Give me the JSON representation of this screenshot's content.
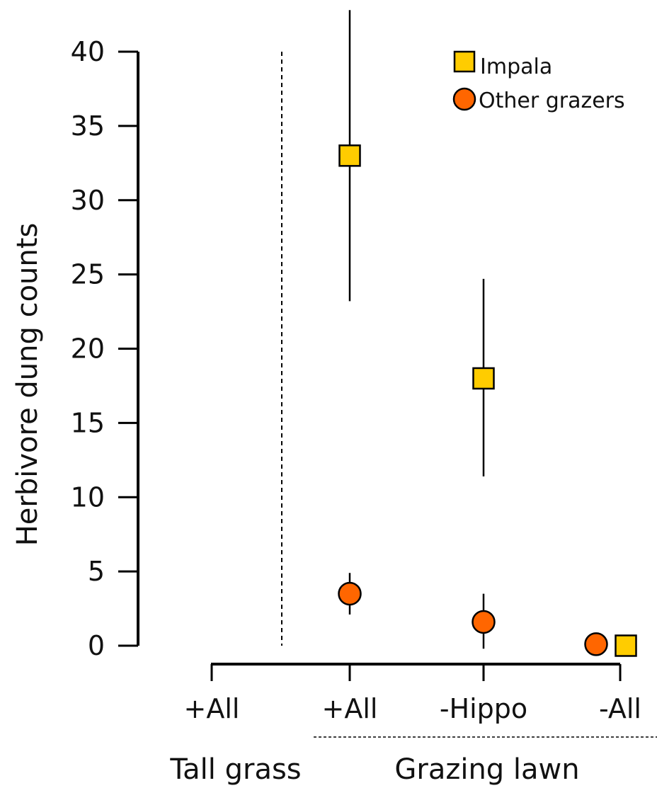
{
  "chart_data": {
    "type": "scatter",
    "ylabel": "Herbivore dung counts",
    "ylim": [
      0,
      40
    ],
    "yticks": [
      {
        "value": 0,
        "label": "0"
      },
      {
        "value": 5,
        "label": "5"
      },
      {
        "value": 10,
        "label": "10"
      },
      {
        "value": 15,
        "label": "15"
      },
      {
        "value": 20,
        "label": "20"
      },
      {
        "value": 25,
        "label": "25"
      },
      {
        "value": 30,
        "label": "30"
      },
      {
        "value": 35,
        "label": "35"
      },
      {
        "value": 40,
        "label": "40"
      }
    ],
    "categories": [
      "+All",
      "+All",
      "-Hippo",
      "-All"
    ],
    "groups": [
      {
        "label": "Tall grass",
        "categories": [
          0
        ]
      },
      {
        "label": "Grazing lawn",
        "categories": [
          1,
          2,
          3
        ]
      }
    ],
    "series": [
      {
        "name": "Impala",
        "marker": "square",
        "color": "#FFCC00",
        "values": [
          null,
          33,
          18,
          0
        ],
        "error_low": [
          null,
          23.2,
          11.4,
          null
        ],
        "error_high": [
          null,
          42.8,
          24.7,
          null
        ]
      },
      {
        "name": "Other grazers",
        "marker": "circle",
        "color": "#FF6600",
        "values": [
          null,
          3.5,
          1.6,
          0.1
        ],
        "error_low": [
          null,
          2.1,
          -0.2,
          null
        ],
        "error_high": [
          null,
          4.9,
          3.5,
          null
        ]
      }
    ],
    "legend_position": "top-right",
    "grid": false
  }
}
